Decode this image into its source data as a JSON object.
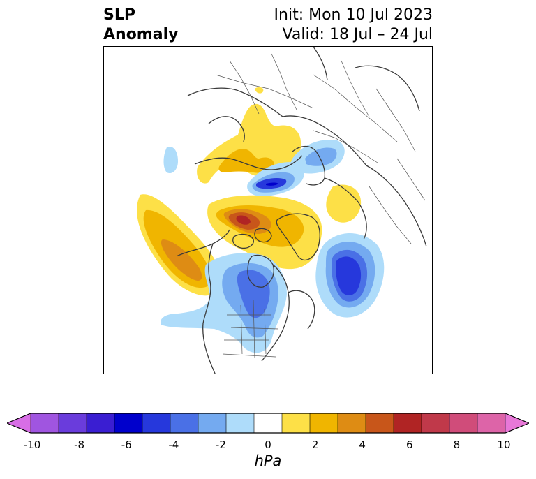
{
  "title": {
    "left_line1": "SLP",
    "left_line2": "Anomaly",
    "right_line1": "Init: Mon 10 Jul 2023",
    "right_line2": "Valid: 18 Jul – 24 Jul"
  },
  "colorbar": {
    "unit": "hPa",
    "ticks": [
      "-10",
      "-8",
      "-6",
      "-4",
      "-2",
      "0",
      "2",
      "4",
      "6",
      "8",
      "10"
    ],
    "bins": [
      {
        "range": "-10 to -9",
        "color": "#d86ee6"
      },
      {
        "range": "-9 to -8",
        "color": "#a055e0"
      },
      {
        "range": "-8 to -7",
        "color": "#6a3cdc"
      },
      {
        "range": "-7 to -6",
        "color": "#3a1ed2"
      },
      {
        "range": "-6 to -5",
        "color": "#0000cc"
      },
      {
        "range": "-5 to -4",
        "color": "#2638dc"
      },
      {
        "range": "-4 to -3",
        "color": "#4a70e6"
      },
      {
        "range": "-3 to -2",
        "color": "#74aaf0"
      },
      {
        "range": "-2 to -1",
        "color": "#aedcfa"
      },
      {
        "range": "-1 to 1",
        "color": "#ffffff"
      },
      {
        "range": "1 to 2",
        "color": "#fde047"
      },
      {
        "range": "2 to 3",
        "color": "#f0b500"
      },
      {
        "range": "3 to 4",
        "color": "#de8c14"
      },
      {
        "range": "4 to 5",
        "color": "#c8561a"
      },
      {
        "range": "5 to 6",
        "color": "#b02424"
      },
      {
        "range": "6 to 7",
        "color": "#c0394a"
      },
      {
        "range": "7 to 8",
        "color": "#d04c7a"
      },
      {
        "range": "8 to 9",
        "color": "#dd64a8"
      },
      {
        "range": "9 to 10",
        "color": "#e878d8"
      }
    ]
  }
}
